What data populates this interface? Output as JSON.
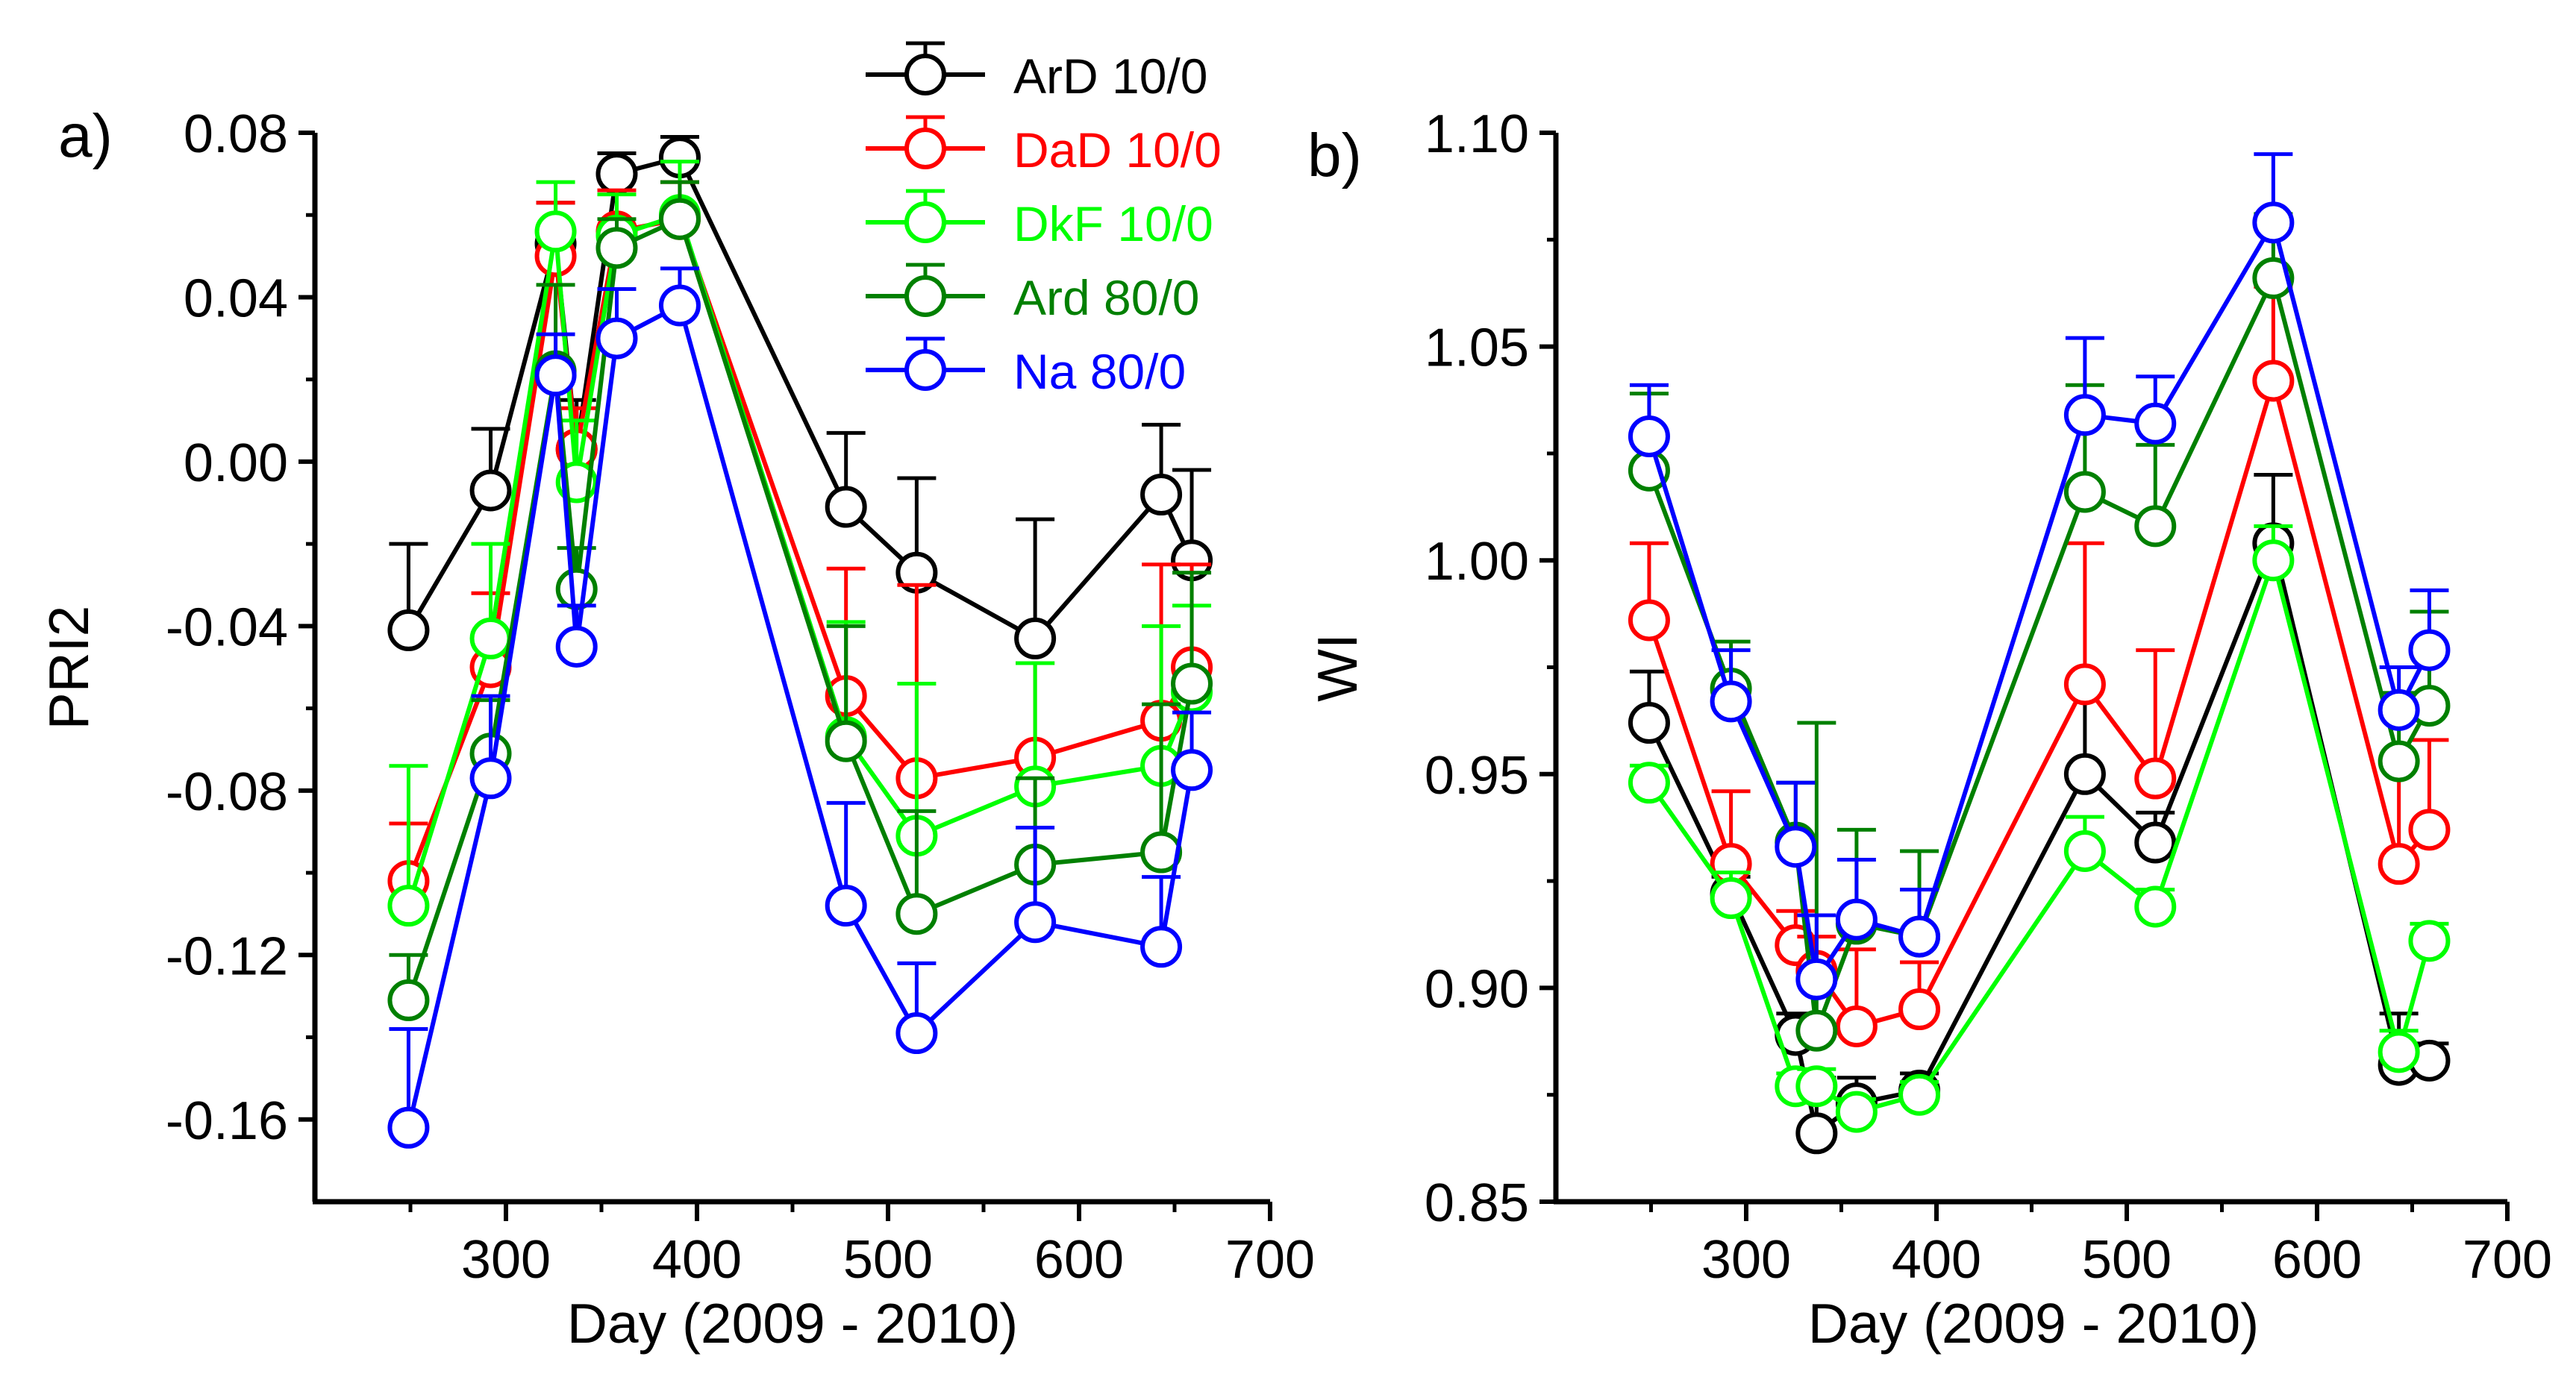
{
  "chart_data": [
    {
      "panel_label": "a)",
      "type": "line",
      "title": "",
      "xlabel": "Day (2009 - 2010)",
      "ylabel": "PRI2",
      "xlim": [
        200,
        700
      ],
      "ylim": [
        -0.18,
        0.08
      ],
      "xticks": [
        300,
        400,
        500,
        600,
        700
      ],
      "xtick_labels": [
        "300",
        "400",
        "500",
        "600",
        "700"
      ],
      "yticks": [
        0.08,
        0.04,
        0.0,
        -0.04,
        -0.08,
        -0.12,
        -0.16
      ],
      "ytick_labels": [
        "0.08",
        "0.04",
        "0.00",
        "-0.04",
        "-0.08",
        "-0.12",
        "-0.16"
      ],
      "x": [
        249,
        292,
        326,
        337,
        358,
        391,
        478,
        515,
        577,
        643,
        659
      ],
      "series": [
        {
          "name": "ArD 10/0",
          "color": "#000000",
          "values": [
            -0.041,
            -0.007,
            0.053,
            0.003,
            0.07,
            0.074,
            -0.011,
            -0.027,
            -0.043,
            -0.008,
            -0.024
          ],
          "errors": [
            0.021,
            0.015,
            0.01,
            0.012,
            0.005,
            0.005,
            0.018,
            0.023,
            0.029,
            0.017,
            0.022
          ]
        },
        {
          "name": "DaD 10/0",
          "color": "#ff0000",
          "values": [
            -0.102,
            -0.05,
            0.05,
            0.003,
            0.056,
            0.059,
            -0.057,
            -0.077,
            -0.072,
            -0.063,
            -0.05
          ],
          "errors": [
            0.014,
            0.018,
            0.013,
            0.01,
            0.01,
            0.009,
            0.031,
            0.047,
            0.023,
            0.038,
            0.025
          ]
        },
        {
          "name": "DkF 10/0",
          "color": "#00ff00",
          "values": [
            -0.108,
            -0.043,
            0.056,
            -0.005,
            0.055,
            0.06,
            -0.067,
            -0.091,
            -0.079,
            -0.074,
            -0.056
          ],
          "errors": [
            0.034,
            0.023,
            0.012,
            0.015,
            0.01,
            0.013,
            0.028,
            0.037,
            0.03,
            0.034,
            0.021
          ]
        },
        {
          "name": "Ard 80/0",
          "color": "#008000",
          "values": [
            -0.131,
            -0.071,
            0.022,
            -0.031,
            0.052,
            0.059,
            -0.068,
            -0.11,
            -0.098,
            -0.095,
            -0.054
          ],
          "errors": [
            0.011,
            0.013,
            0.021,
            0.01,
            0.007,
            0.009,
            0.028,
            0.025,
            0.021,
            0.036,
            0.027
          ]
        },
        {
          "name": "Na 80/0",
          "color": "#0000ff",
          "values": [
            -0.162,
            -0.077,
            0.021,
            -0.045,
            0.03,
            0.038,
            -0.108,
            -0.139,
            -0.112,
            -0.118,
            -0.075
          ],
          "errors": [
            0.024,
            0.02,
            0.01,
            0.01,
            0.012,
            0.009,
            0.025,
            0.017,
            0.023,
            0.017,
            0.014
          ]
        }
      ],
      "legend": {
        "position": "top-center",
        "entries": [
          "ArD 10/0",
          "DaD 10/0",
          "DkF 10/0",
          "Ard 80/0",
          "Na 80/0"
        ]
      }
    },
    {
      "panel_label": "b)",
      "type": "line",
      "title": "",
      "xlabel": "Day (2009 - 2010)",
      "ylabel": "WI",
      "xlim": [
        200,
        700
      ],
      "ylim": [
        0.85,
        1.1
      ],
      "xticks": [
        300,
        400,
        500,
        600,
        700
      ],
      "xtick_labels": [
        "300",
        "400",
        "500",
        "600",
        "700"
      ],
      "yticks": [
        1.1,
        1.05,
        1.0,
        0.95,
        0.9,
        0.85
      ],
      "ytick_labels": [
        "1.10",
        "1.05",
        "1.00",
        "0.95",
        "0.90",
        "0.85"
      ],
      "x": [
        249,
        292,
        326,
        337,
        358,
        391,
        478,
        515,
        577,
        643,
        659
      ],
      "series": [
        {
          "name": "ArD 10/0",
          "color": "#000000",
          "values": [
            0.962,
            0.922,
            0.889,
            0.866,
            0.873,
            0.876,
            0.95,
            0.934,
            1.004,
            0.882,
            0.883
          ],
          "errors": [
            0.012,
            0.004,
            0.005,
            0.013,
            0.006,
            0.004,
            0.02,
            0.007,
            0.016,
            0.012,
            0.004
          ]
        },
        {
          "name": "DaD 10/0",
          "color": "#ff0000",
          "values": [
            0.986,
            0.929,
            0.91,
            0.904,
            0.891,
            0.895,
            0.971,
            0.949,
            1.042,
            0.929,
            0.937
          ],
          "errors": [
            0.018,
            0.017,
            0.008,
            0.008,
            0.018,
            0.011,
            0.033,
            0.03,
            0.022,
            0.024,
            0.021
          ]
        },
        {
          "name": "DkF 10/0",
          "color": "#00ff00",
          "values": [
            0.948,
            0.921,
            0.877,
            0.877,
            0.871,
            0.875,
            0.932,
            0.919,
            1.0,
            0.885,
            0.911
          ],
          "errors": [
            0.004,
            0.006,
            0.003,
            0.004,
            0.003,
            0.003,
            0.008,
            0.004,
            0.008,
            0.005,
            0.004
          ]
        },
        {
          "name": "Ard 80/0",
          "color": "#008000",
          "values": [
            1.021,
            0.97,
            0.934,
            0.89,
            0.915,
            0.912,
            1.016,
            1.008,
            1.066,
            0.953,
            0.966
          ],
          "errors": [
            0.018,
            0.011,
            0.014,
            0.072,
            0.022,
            0.02,
            0.025,
            0.019,
            0.015,
            0.016,
            0.022
          ]
        },
        {
          "name": "Na 80/0",
          "color": "#0000ff",
          "values": [
            1.029,
            0.967,
            0.933,
            0.902,
            0.916,
            0.912,
            1.034,
            1.032,
            1.079,
            0.965,
            0.979
          ],
          "errors": [
            0.012,
            0.012,
            0.015,
            0.015,
            0.014,
            0.011,
            0.018,
            0.011,
            0.016,
            0.01,
            0.014
          ]
        }
      ]
    }
  ]
}
